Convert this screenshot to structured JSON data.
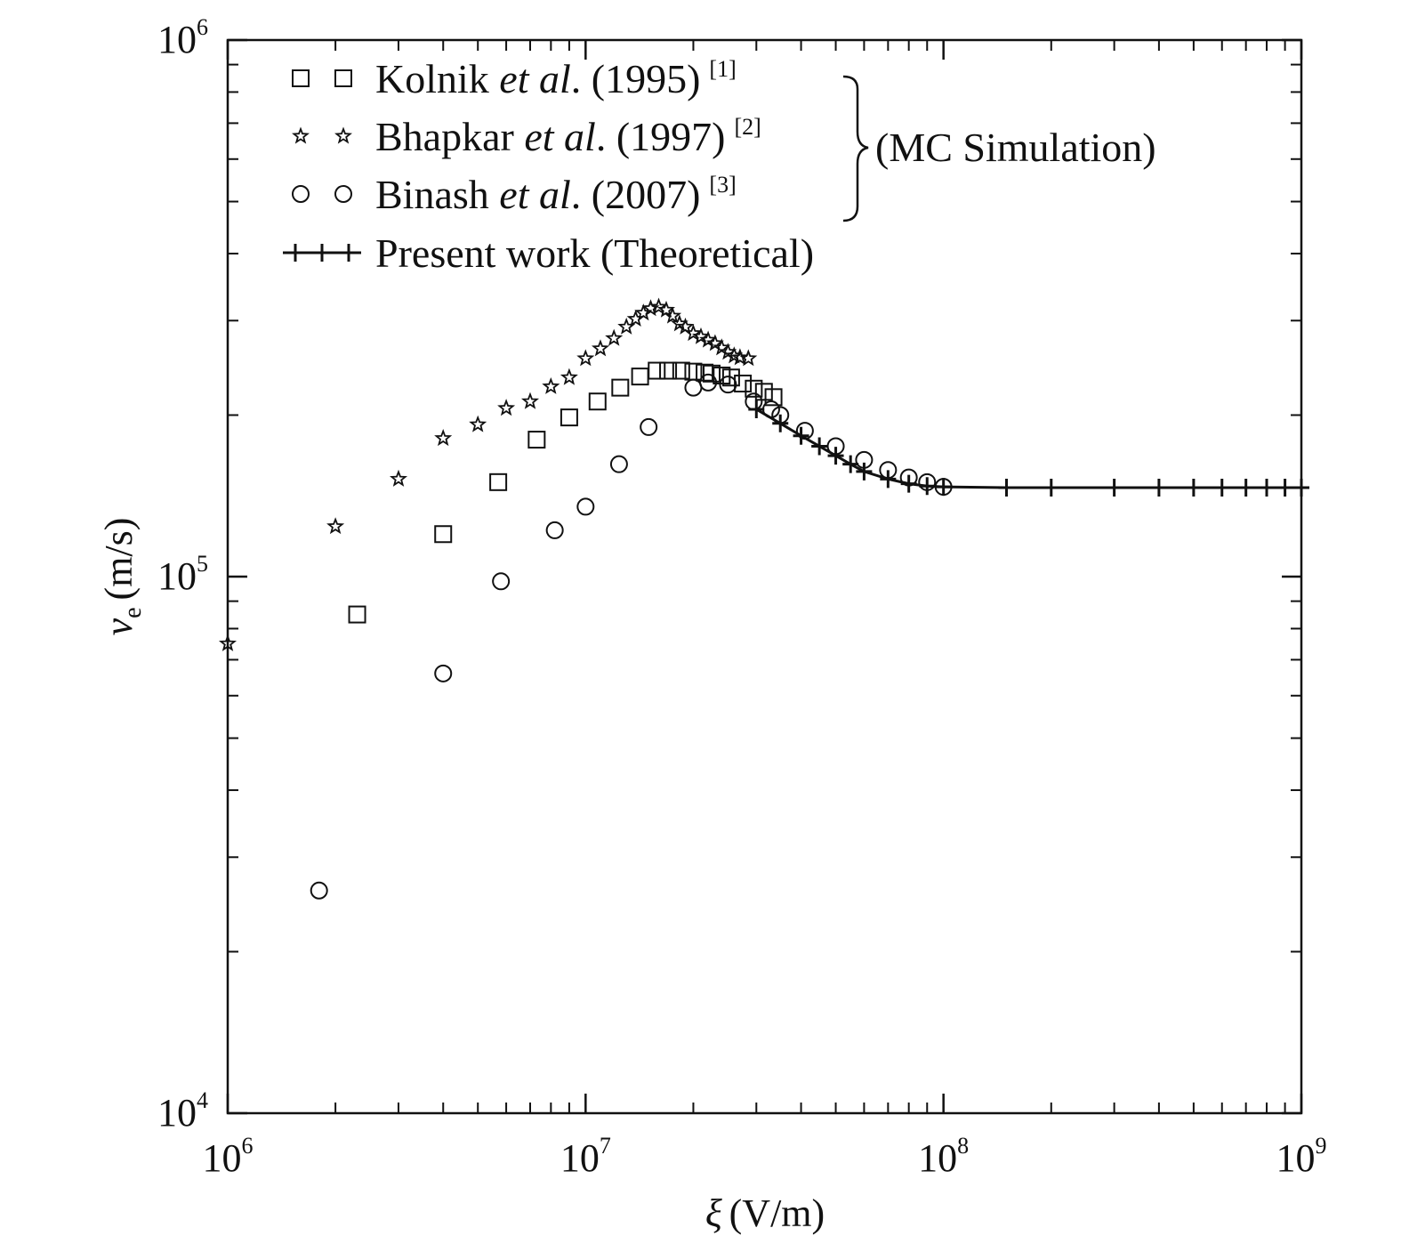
{
  "chart_data": {
    "type": "scatter",
    "xscale": "log",
    "yscale": "log",
    "xlim": [
      1000000,
      1000000000
    ],
    "ylim": [
      10000,
      1000000
    ],
    "xlabel": {
      "symbol": "ξ",
      "unit": "(V/m)"
    },
    "ylabel": {
      "symbol": "v",
      "subscript": "e",
      "unit": "(m/s)"
    },
    "xticks": [
      {
        "value": 1000000,
        "base": "10",
        "exp": "6"
      },
      {
        "value": 10000000,
        "base": "10",
        "exp": "7"
      },
      {
        "value": 100000000,
        "base": "10",
        "exp": "8"
      },
      {
        "value": 1000000000,
        "base": "10",
        "exp": "9"
      }
    ],
    "yticks": [
      {
        "value": 10000,
        "base": "10",
        "exp": "4"
      },
      {
        "value": 100000,
        "base": "10",
        "exp": "5"
      },
      {
        "value": 1000000,
        "base": "10",
        "exp": "6"
      }
    ],
    "legend_placement": "top-left",
    "legend_group_label": "(MC Simulation)",
    "series": [
      {
        "key": "kolnik",
        "marker": "square",
        "legend": {
          "name": "Kolnik ",
          "etal": "et al",
          "rest": ". (1995)",
          "ref": "[1]"
        },
        "x": [
          2300000,
          4000000,
          5700000,
          7300000,
          9000000,
          10800000,
          12500000,
          14200000,
          15800000,
          17000000,
          18500000,
          20000000,
          21500000,
          22500000,
          24000000,
          25500000,
          27500000,
          29500000,
          31500000,
          33500000
        ],
        "y": [
          85000,
          120000,
          150000,
          180000,
          198000,
          212000,
          225000,
          236000,
          242000,
          242000,
          242000,
          241000,
          240000,
          239000,
          237000,
          235000,
          229000,
          224000,
          221000,
          216000
        ]
      },
      {
        "key": "bhapkar",
        "marker": "star",
        "legend": {
          "name": "Bhapkar ",
          "etal": "et al",
          "rest": ". (1997)",
          "ref": "[2]"
        },
        "x": [
          1000000,
          2000000,
          3000000,
          4000000,
          5000000,
          6000000,
          7000000,
          8000000,
          9000000,
          10000000,
          11000000,
          12000000,
          13000000,
          13800000,
          14500000,
          15200000,
          16000000,
          16800000,
          17500000,
          18300000,
          19000000,
          20000000,
          21000000,
          22000000,
          23000000,
          24000000,
          25000000,
          26000000,
          27000000,
          28500000
        ],
        "y": [
          75000,
          124000,
          152000,
          181000,
          192000,
          206000,
          212000,
          226000,
          235000,
          255000,
          266000,
          278000,
          292000,
          302000,
          310000,
          316000,
          318000,
          314000,
          306000,
          296000,
          292000,
          284000,
          280000,
          276000,
          272000,
          267000,
          262000,
          258000,
          256000,
          255000
        ]
      },
      {
        "key": "binash",
        "marker": "circle",
        "legend": {
          "name": "Binash ",
          "etal": "et al",
          "rest": ". (2007)",
          "ref": "[3]"
        },
        "x": [
          1800000,
          4000000,
          5800000,
          8200000,
          10000000,
          12400000,
          15000000,
          20000000,
          22000000,
          25000000,
          29500000,
          33000000,
          35000000,
          41000000,
          50000000,
          60000000,
          70000000,
          80000000,
          90000000,
          100000000
        ],
        "y": [
          26000,
          66000,
          98000,
          122000,
          135000,
          162000,
          190000,
          225000,
          230000,
          228000,
          212000,
          205000,
          200000,
          187000,
          175000,
          165000,
          158000,
          153000,
          150000,
          147000
        ]
      },
      {
        "key": "present",
        "marker": "plus-line",
        "legend": {
          "name": "Present work (Theoretical)",
          "etal": "",
          "rest": "",
          "ref": ""
        },
        "x": [
          30000000,
          35000000,
          40000000,
          45000000,
          50000000,
          55000000,
          60000000,
          70000000,
          80000000,
          90000000,
          100000000,
          150000000,
          200000000,
          300000000,
          400000000,
          500000000,
          600000000,
          700000000,
          800000000,
          900000000,
          1000000000
        ],
        "y": [
          205000,
          193000,
          183000,
          175000,
          168000,
          162000,
          157000,
          152000,
          149000,
          147500,
          147000,
          146500,
          146500,
          146500,
          146500,
          146500,
          146500,
          146500,
          146500,
          146500,
          146500
        ]
      }
    ]
  }
}
